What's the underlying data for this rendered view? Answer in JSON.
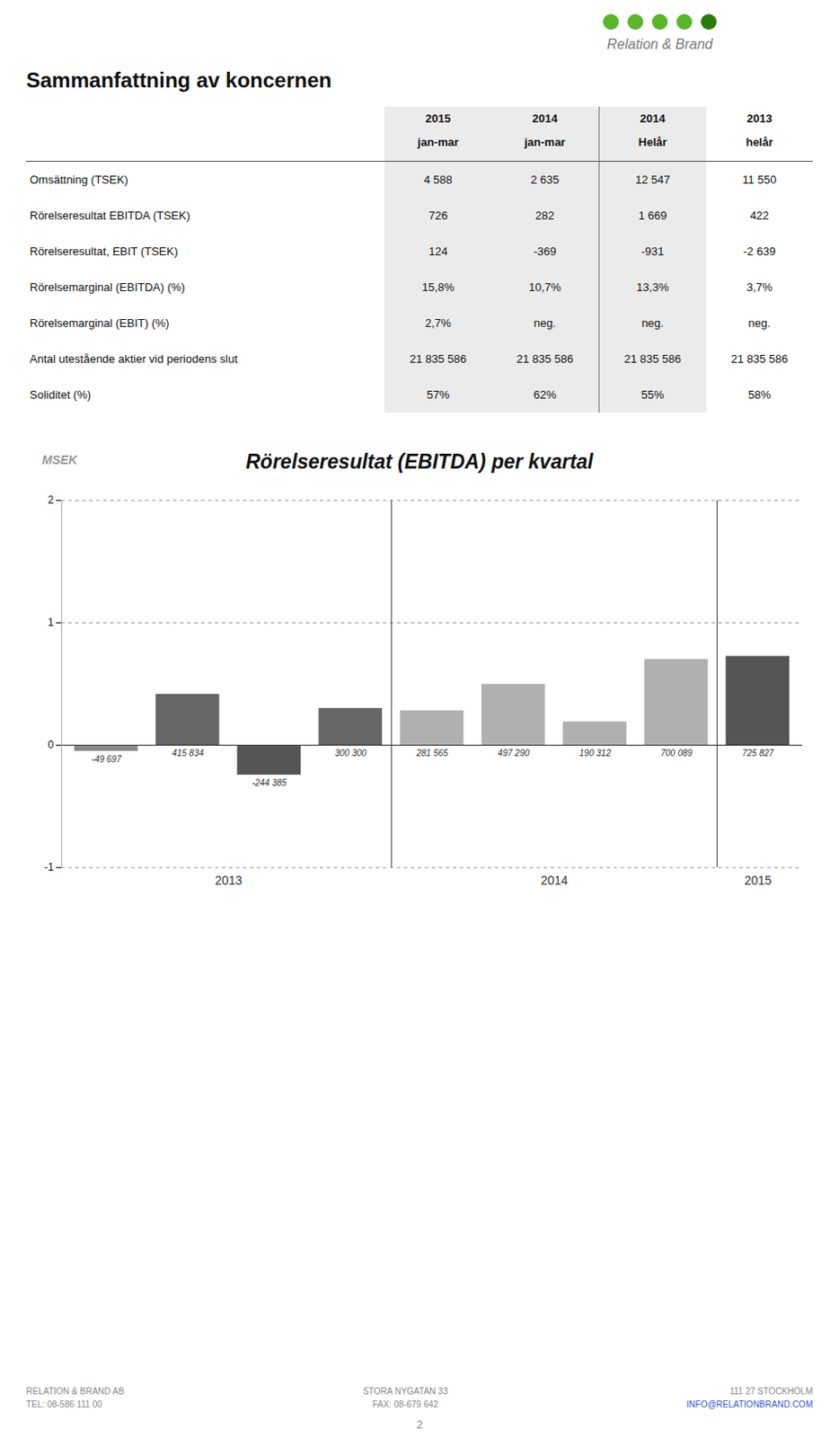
{
  "title": "Sammanfattning av koncernen",
  "logo_text": "Relation & Brand",
  "chart_data": [
    {
      "type": "table",
      "columns": [
        [
          "2015",
          "jan-mar"
        ],
        [
          "2014",
          "jan-mar"
        ],
        [
          "2014",
          "Helår"
        ],
        [
          "2013",
          "helår"
        ]
      ],
      "rows": [
        {
          "label": "Omsättning (TSEK)",
          "values": [
            "4 588",
            "2 635",
            "12 547",
            "11 550"
          ]
        },
        {
          "label": "Rörelseresultat EBITDA (TSEK)",
          "values": [
            "726",
            "282",
            "1 669",
            "422"
          ]
        },
        {
          "label": "Rörelseresultat, EBIT (TSEK)",
          "values": [
            "124",
            "-369",
            "-931",
            "-2 639"
          ]
        },
        {
          "label": "Rörelsemarginal (EBITDA) (%)",
          "values": [
            "15,8%",
            "10,7%",
            "13,3%",
            "3,7%"
          ]
        },
        {
          "label": "Rörelsemarginal (EBIT) (%)",
          "values": [
            "2,7%",
            "neg.",
            "neg.",
            "neg."
          ]
        },
        {
          "label": "Antal utestående aktier vid periodens slut",
          "values": [
            "21 835 586",
            "21 835 586",
            "21 835 586",
            "21 835 586"
          ]
        },
        {
          "label": "Soliditet (%)",
          "values": [
            "57%",
            "62%",
            "55%",
            "58%"
          ]
        }
      ]
    },
    {
      "type": "bar",
      "title": "Rörelseresultat (EBITDA) per kvartal",
      "ylabel": "MSEK",
      "categories": [
        null,
        null,
        null,
        null,
        null,
        null,
        null,
        null,
        null
      ],
      "groups": [
        "2013",
        "2013",
        "2013",
        "2013",
        "2014",
        "2014",
        "2014",
        "2014",
        "2015"
      ],
      "values": [
        -0.049697,
        0.415834,
        -0.244385,
        0.3003,
        0.281565,
        0.49729,
        0.190312,
        0.700089,
        0.725827
      ],
      "value_labels": [
        "-49 697",
        "415 834",
        "-244 385",
        "300 300",
        "281 565",
        "497 290",
        "190 312",
        "700 089",
        "725 827"
      ],
      "colors": [
        "#888888",
        "#666666",
        "#555555",
        "#666666",
        "#b0b0b0",
        "#b0b0b0",
        "#b0b0b0",
        "#b0b0b0",
        "#555555"
      ],
      "ylim": [
        -1,
        2
      ],
      "yticks": [
        -1,
        0,
        1,
        2
      ],
      "grid": true,
      "data_labels": true,
      "tick_labels": "y"
    }
  ],
  "footer": [
    [
      "RELATION & BRAND AB",
      "TEL: 08-586 111 00"
    ],
    [
      "STORA NYGATAN 33",
      "FAX: 08-679 642"
    ],
    [
      "111 27 STOCKHOLM",
      "INFO@RELATIONBRAND.COM"
    ]
  ],
  "page_number": "2"
}
